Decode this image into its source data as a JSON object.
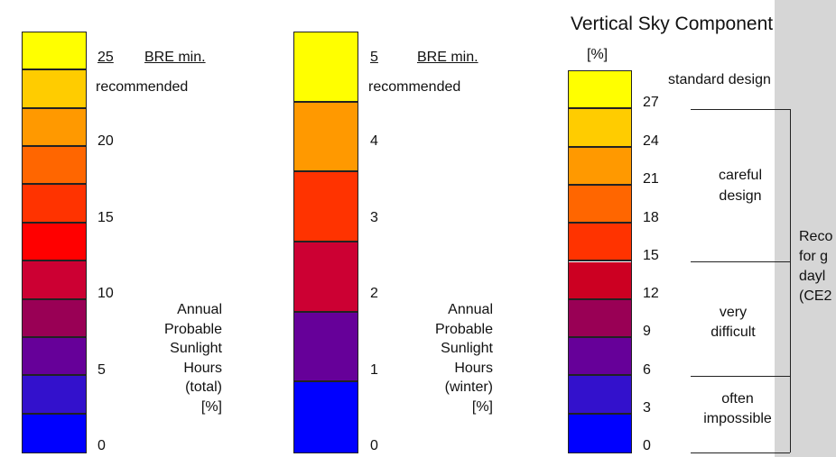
{
  "colors": {
    "bar1": [
      "#ffff00",
      "#ffcc00",
      "#ff9900",
      "#ff6600",
      "#ff3300",
      "#ff0000",
      "#cc0033",
      "#990055",
      "#660099",
      "#3311cc",
      "#0000ff"
    ],
    "bar2": [
      "#ffff00",
      "#ff9900",
      "#ff3300",
      "#cc0033",
      "#660099",
      "#0000ff"
    ],
    "bar3": [
      "#ffff00",
      "#ffcc00",
      "#ff9900",
      "#ff6600",
      "#ff3300",
      "#cc0022",
      "#990055",
      "#660099",
      "#3311cc",
      "#0000ff"
    ],
    "side_panel": "#d6d6d6"
  },
  "scale1": {
    "ticks": [
      "25",
      "20",
      "15",
      "10",
      "5",
      "0"
    ],
    "bre_label": "BRE min.",
    "recommended": "recommended",
    "caption": [
      "Annual",
      "Probable",
      "Sunlight",
      "Hours",
      "(total)",
      "[%]"
    ]
  },
  "scale2": {
    "ticks": [
      "5",
      "4",
      "3",
      "2",
      "1",
      "0"
    ],
    "bre_label": "BRE min.",
    "recommended": "recommended",
    "caption": [
      "Annual",
      "Probable",
      "Sunlight",
      "Hours",
      "(winter)",
      "[%]"
    ]
  },
  "scale3": {
    "title": "Vertical Sky Component",
    "unit": "[%]",
    "ticks": [
      "27",
      "24",
      "21",
      "18",
      "15",
      "12",
      "9",
      "6",
      "3",
      "0"
    ],
    "bands": {
      "standard": "standard design",
      "careful": [
        "careful",
        "design"
      ],
      "very_difficult": [
        "very",
        "difficult"
      ],
      "often_impossible": [
        "often",
        "impossible"
      ]
    },
    "recommendation": [
      "Reco",
      "for g",
      "dayl",
      "(CE2"
    ]
  }
}
